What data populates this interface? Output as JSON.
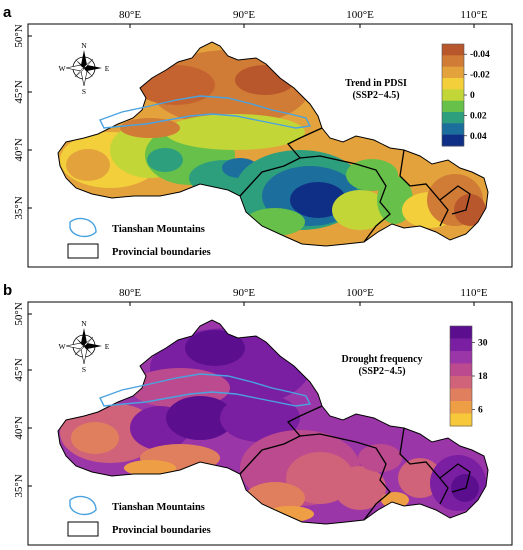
{
  "panels": [
    {
      "id": "a",
      "label": "a",
      "legend_title_line1": "Trend in PDSI",
      "legend_title_line2": "(SSP2−4.5)",
      "legend_labels": [
        "-0.04",
        "-0.02",
        "0",
        "0.02",
        "0.04"
      ],
      "legend_colors": [
        "#b8572c",
        "#d07b36",
        "#e3a23c",
        "#f2cf3b",
        "#c3d638",
        "#66c04a",
        "#2e9f7d",
        "#1c6f9d",
        "#0f2f86"
      ],
      "key_tianshan": "Tianshan Mountains",
      "key_boundaries": "Provincial boundaries"
    },
    {
      "id": "b",
      "label": "b",
      "legend_title_line1": "Drought frequency",
      "legend_title_line2": "(SSP2−4.5)",
      "legend_labels": [
        "30",
        "18",
        "6"
      ],
      "legend_colors": [
        "#5b0f8f",
        "#7a1fa2",
        "#9b36a8",
        "#bc4a8e",
        "#d0627a",
        "#e07f5e",
        "#ee9f45",
        "#f6c83a"
      ],
      "key_tianshan": "Tianshan Mountains",
      "key_boundaries": "Provincial boundaries"
    }
  ],
  "axes": {
    "x_ticks": [
      "80°E",
      "90°E",
      "100°E",
      "110°E"
    ],
    "y_ticks": [
      "50°N",
      "45°N",
      "40°N",
      "35°N"
    ]
  },
  "compass": {
    "n": "N",
    "s": "S",
    "w": "W",
    "e": "E"
  }
}
